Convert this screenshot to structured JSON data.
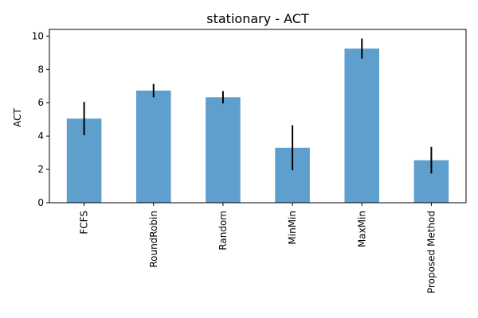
{
  "chart_data": {
    "type": "bar",
    "title": "stationary - ACT",
    "xlabel": "",
    "ylabel": "ACT",
    "categories": [
      "FCFS",
      "RoundRobin",
      "Random",
      "MinMin",
      "MaxMin",
      "Proposed Method"
    ],
    "values": [
      5.05,
      6.73,
      6.33,
      3.3,
      9.25,
      2.55
    ],
    "errors": [
      1.0,
      0.4,
      0.37,
      1.35,
      0.6,
      0.8
    ],
    "ylim": [
      0,
      10.4
    ],
    "yticks": [
      0,
      2,
      4,
      6,
      8,
      10
    ],
    "grid": false,
    "bar_color": "#5f9fcd",
    "error_color": "#000000",
    "legend": "none"
  }
}
